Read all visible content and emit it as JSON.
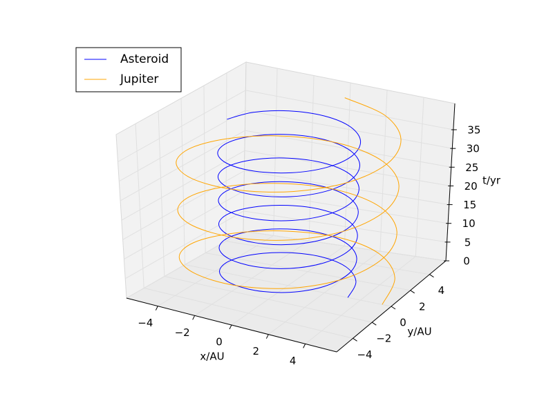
{
  "chart_data": {
    "type": "line3d",
    "xlabel": "x/AU",
    "ylabel": "y/AU",
    "zlabel": "t/yr",
    "xlim": [
      -5.7,
      5.7
    ],
    "ylim": [
      -5.7,
      5.7
    ],
    "zlim": [
      0,
      42
    ],
    "xticks": [
      {
        "value": -4,
        "label": "−4"
      },
      {
        "value": -2,
        "label": "−2"
      },
      0,
      2,
      4
    ],
    "yticks": [
      {
        "value": -4,
        "label": "−4"
      },
      {
        "value": -2,
        "label": "−2"
      },
      0,
      2,
      4
    ],
    "zticks": [
      0,
      5,
      10,
      15,
      20,
      25,
      30,
      35
    ],
    "grid": true,
    "legend": "upper left",
    "series": [
      {
        "name": "Asteroid",
        "color": "#0000ff",
        "x": [
          3.3,
          2.858,
          1.65,
          0,
          -1.65,
          -2.858,
          -3.3,
          -2.858,
          -1.65,
          0,
          1.65,
          2.858,
          3.3,
          2.858,
          1.65,
          0,
          -1.65,
          -2.858,
          -3.3,
          -2.858,
          -1.65,
          0,
          1.65,
          2.858,
          3.3,
          2.858,
          1.65,
          0,
          -1.65,
          -2.858,
          -3.3,
          -2.858,
          -1.65,
          0,
          1.65,
          2.858,
          3.3,
          2.858,
          1.65,
          0,
          -1.65,
          -2.858,
          -3.3,
          -2.858,
          -1.65,
          0,
          1.65,
          2.858,
          3.3,
          2.858,
          1.65,
          0,
          -1.65,
          -2.858,
          -3.3,
          -2.858,
          -1.65,
          0,
          1.65,
          2.858,
          3.3,
          2.858,
          1.65,
          0,
          -1.65,
          -2.858,
          -3.3,
          -2.858,
          -1.65,
          0,
          1.65,
          2.858,
          3.3,
          2.858,
          1.65,
          0,
          -1.65,
          -2.858,
          -3.3
        ],
        "y": [
          0,
          1.65,
          2.858,
          3.3,
          2.858,
          1.65,
          0,
          -1.65,
          -2.858,
          -3.3,
          -2.858,
          -1.65,
          0,
          1.65,
          2.858,
          3.3,
          2.858,
          1.65,
          0,
          -1.65,
          -2.858,
          -3.3,
          -2.858,
          -1.65,
          0,
          1.65,
          2.858,
          3.3,
          2.858,
          1.65,
          0,
          -1.65,
          -2.858,
          -3.3,
          -2.858,
          -1.65,
          0,
          1.65,
          2.858,
          3.3,
          2.858,
          1.65,
          0,
          -1.65,
          -2.858,
          -3.3,
          -2.858,
          -1.65,
          0,
          1.65,
          2.858,
          3.3,
          2.858,
          1.65,
          0,
          -1.65,
          -2.858,
          -3.3,
          -2.858,
          -1.65,
          0,
          1.65,
          2.858,
          3.3,
          2.858,
          1.65,
          0,
          -1.65,
          -2.858,
          -3.3,
          -2.858,
          -1.65,
          0,
          1.65,
          2.858,
          3.3,
          2.858,
          1.65,
          0
        ],
        "z": [
          0,
          0.5,
          1,
          1.5,
          2,
          2.5,
          3,
          3.5,
          4,
          4.5,
          5,
          5.5,
          6,
          6.5,
          7,
          7.5,
          8,
          8.5,
          9,
          9.5,
          10,
          10.5,
          11,
          11.5,
          12,
          12.5,
          13,
          13.5,
          14,
          14.5,
          15,
          15.5,
          16,
          16.5,
          17,
          17.5,
          18,
          18.5,
          19,
          19.5,
          20,
          20.5,
          21,
          21.5,
          22,
          22.5,
          23,
          23.5,
          24,
          24.5,
          25,
          25.5,
          26,
          26.5,
          27,
          27.5,
          28,
          28.5,
          29,
          29.5,
          30,
          30.5,
          31,
          31.5,
          32,
          32.5,
          33,
          33.5,
          34,
          34.5,
          35,
          35.5,
          36,
          36.5,
          37,
          37.5,
          38,
          38.5,
          39
        ]
      },
      {
        "name": "Jupiter",
        "color": "#ffa500",
        "x": [
          5.2,
          4.503,
          2.6,
          0,
          -2.6,
          -4.503,
          -5.2,
          -4.503,
          -2.6,
          0,
          2.6,
          4.503,
          5.2,
          4.503,
          2.6,
          0,
          -2.6,
          -4.503,
          -5.2,
          -4.503,
          -2.6,
          0,
          2.6,
          4.503,
          5.2,
          4.503,
          2.6,
          0,
          -2.6,
          -4.503,
          -5.2,
          -4.503,
          -2.6,
          0,
          2.6,
          4.503,
          5.2,
          4.503,
          2.6,
          0
        ],
        "y": [
          0,
          2.6,
          4.503,
          5.2,
          4.503,
          2.6,
          0,
          -2.6,
          -4.503,
          -5.2,
          -4.503,
          -2.6,
          0,
          2.6,
          4.503,
          5.2,
          4.503,
          2.6,
          0,
          -2.6,
          -4.503,
          -5.2,
          -4.503,
          -2.6,
          0,
          2.6,
          4.503,
          5.2,
          4.503,
          2.6,
          0,
          -2.6,
          -4.503,
          -5.2,
          -4.503,
          -2.6,
          0,
          2.6,
          4.503,
          5.2
        ],
        "z": [
          0,
          1,
          2,
          3,
          4,
          5,
          6,
          7,
          8,
          9,
          10,
          11,
          12,
          13,
          14,
          15,
          16,
          17,
          18,
          19,
          20,
          21,
          22,
          23,
          24,
          25,
          26,
          27,
          28,
          29,
          30,
          31,
          32,
          33,
          34,
          35,
          36,
          37,
          38,
          39
        ]
      }
    ]
  }
}
